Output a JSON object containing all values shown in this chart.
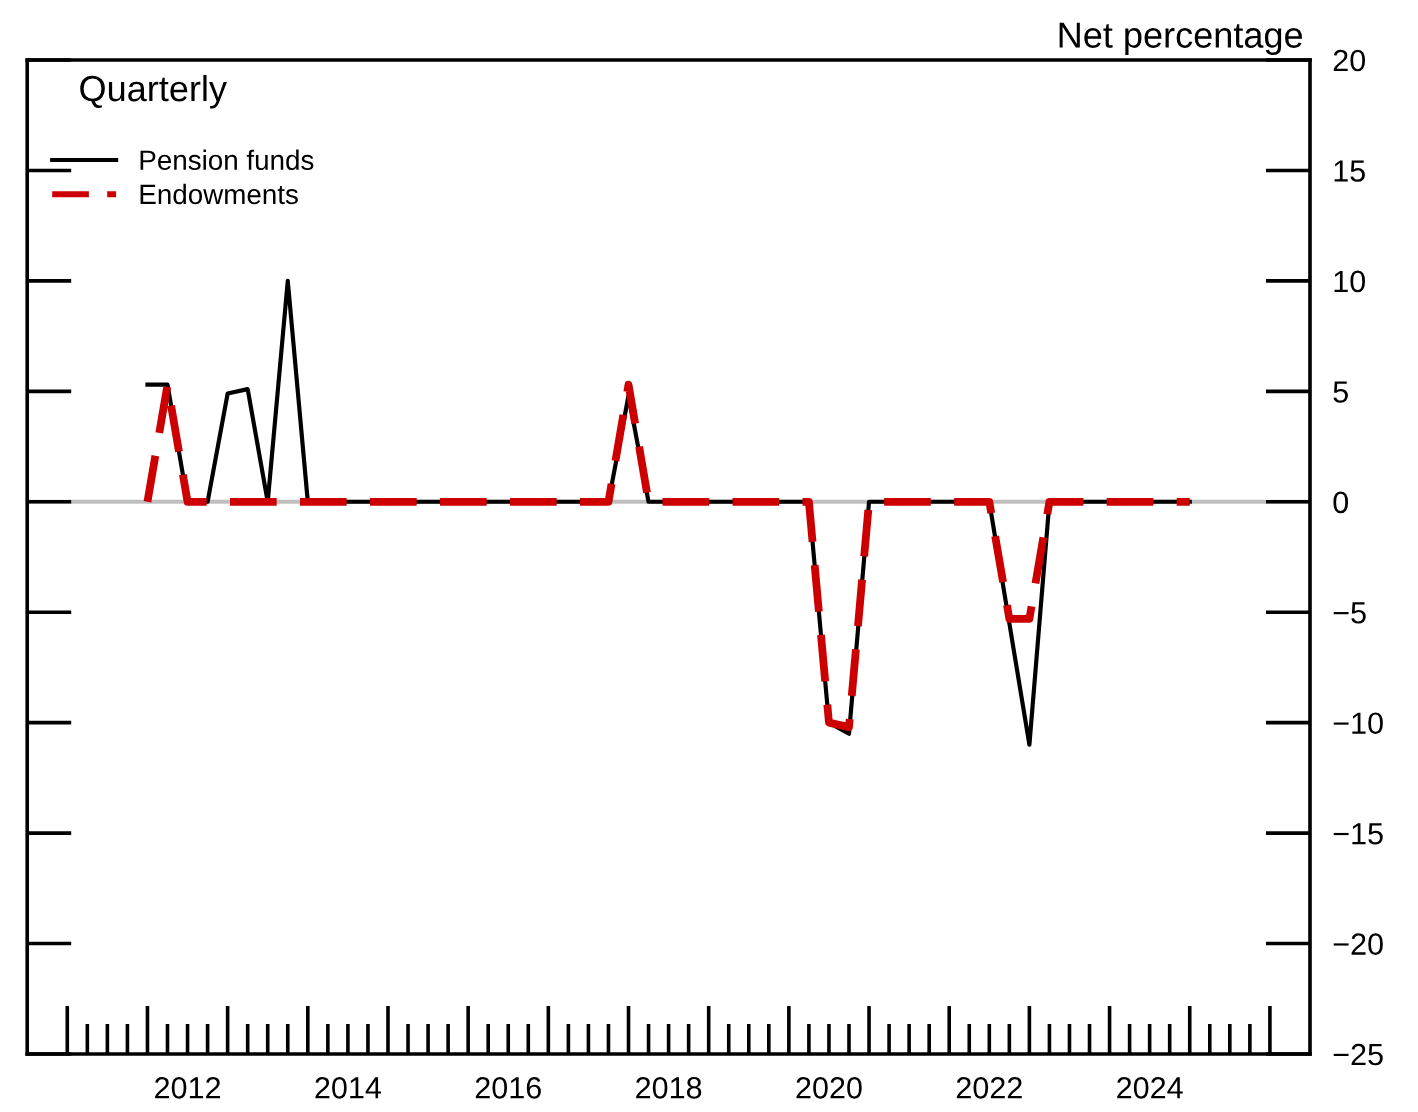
{
  "chart_data": {
    "type": "line",
    "ylabel": "Net percentage",
    "annotations": [
      "Quarterly"
    ],
    "x": [
      2012,
      2012.25,
      2012.5,
      2012.75,
      2013,
      2013.25,
      2013.5,
      2013.75,
      2014,
      2014.25,
      2014.5,
      2014.75,
      2015,
      2015.25,
      2015.5,
      2015.75,
      2016,
      2016.25,
      2016.5,
      2016.75,
      2017,
      2017.25,
      2017.5,
      2017.75,
      2018,
      2018.25,
      2018.5,
      2018.75,
      2019,
      2019.25,
      2019.5,
      2019.75,
      2020,
      2020.25,
      2020.5,
      2020.75,
      2021,
      2021.25,
      2021.5,
      2021.75,
      2022,
      2022.25,
      2022.5,
      2022.75,
      2023,
      2023.25,
      2023.5,
      2023.75,
      2024,
      2024.25,
      2024.5,
      2024.75,
      2025
    ],
    "series": [
      {
        "name": "Pension funds",
        "color": "#000000",
        "line_style": "solid",
        "values": [
          5.3,
          5.3,
          0,
          0,
          4.9,
          5.1,
          0,
          10,
          0,
          0,
          0,
          0,
          0,
          0,
          0,
          0,
          0,
          0,
          0,
          0,
          0,
          0,
          0,
          0,
          4.8,
          0,
          0,
          0,
          0,
          0,
          0,
          0,
          0,
          0,
          -10,
          -10.5,
          0,
          0,
          0,
          0,
          0,
          0,
          0,
          -5.5,
          -11,
          0,
          0,
          0,
          0,
          0,
          0,
          0,
          0
        ]
      },
      {
        "name": "Endowments",
        "color": "#cc0000",
        "line_style": "dashed",
        "values": [
          0,
          5.3,
          0,
          0,
          0,
          0,
          0,
          0,
          0,
          0,
          0,
          0,
          0,
          0,
          0,
          0,
          0,
          0,
          0,
          0,
          0,
          0,
          0,
          0,
          5.3,
          0,
          0,
          0,
          0,
          0,
          0,
          0,
          0,
          0,
          -10,
          -10.2,
          0,
          0,
          0,
          0,
          0,
          0,
          0,
          -5.3,
          -5.3,
          0,
          0,
          0,
          0,
          0,
          0,
          0,
          0
        ]
      }
    ],
    "xlim": [
      2010.5,
      2026.5
    ],
    "xticks": [
      {
        "value": 2012.5,
        "label": "2012"
      },
      {
        "value": 2014.5,
        "label": "2014"
      },
      {
        "value": 2016.5,
        "label": "2016"
      },
      {
        "value": 2018.5,
        "label": "2018"
      },
      {
        "value": 2020.5,
        "label": "2020"
      },
      {
        "value": 2022.5,
        "label": "2022"
      },
      {
        "value": 2024.5,
        "label": "2024"
      }
    ],
    "ylim": [
      -25,
      20
    ],
    "yticks": [
      -25,
      -20,
      -15,
      -10,
      -5,
      0,
      5,
      10,
      15,
      20
    ],
    "ref_lines": [
      {
        "axis": "y",
        "value": 0,
        "color": "#bfbfbf"
      }
    ],
    "grid": false,
    "legend": "top left",
    "marker": "none"
  }
}
